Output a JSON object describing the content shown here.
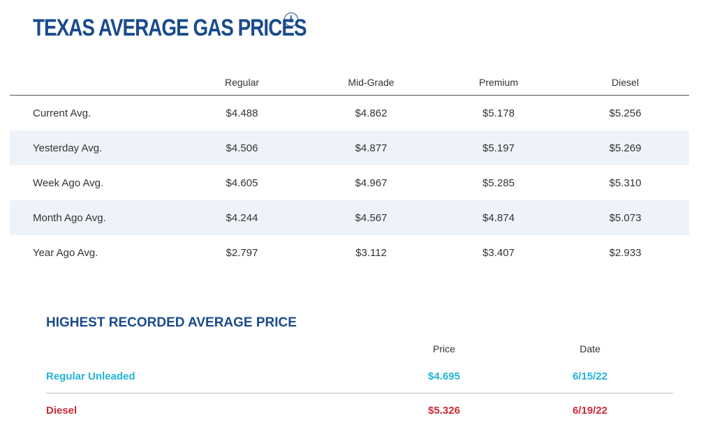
{
  "header": {
    "title": "TEXAS AVERAGE GAS PRICES",
    "info_icon": "info-circle-icon"
  },
  "prices_table": {
    "columns": [
      "Regular",
      "Mid-Grade",
      "Premium",
      "Diesel"
    ],
    "rows": [
      {
        "label": "Current Avg.",
        "values": [
          "$4.488",
          "$4.862",
          "$5.178",
          "$5.256"
        ]
      },
      {
        "label": "Yesterday Avg.",
        "values": [
          "$4.506",
          "$4.877",
          "$5.197",
          "$5.269"
        ]
      },
      {
        "label": "Week Ago Avg.",
        "values": [
          "$4.605",
          "$4.967",
          "$5.285",
          "$5.310"
        ]
      },
      {
        "label": "Month Ago Avg.",
        "values": [
          "$4.244",
          "$4.567",
          "$4.874",
          "$5.073"
        ]
      },
      {
        "label": "Year Ago Avg.",
        "values": [
          "$2.797",
          "$3.112",
          "$3.407",
          "$2.933"
        ]
      }
    ]
  },
  "highest": {
    "title": "HIGHEST RECORDED AVERAGE PRICE",
    "columns": [
      "Price",
      "Date"
    ],
    "rows": [
      {
        "label": "Regular Unleaded",
        "price": "$4.695",
        "date": "6/15/22"
      },
      {
        "label": "Diesel",
        "price": "$5.326",
        "date": "6/19/22"
      }
    ]
  },
  "colors": {
    "title_blue": "#1a4b8c",
    "row_alt_bg": "#eef3f9",
    "regular_cyan": "#22b3d6",
    "diesel_red": "#cc2b36"
  }
}
